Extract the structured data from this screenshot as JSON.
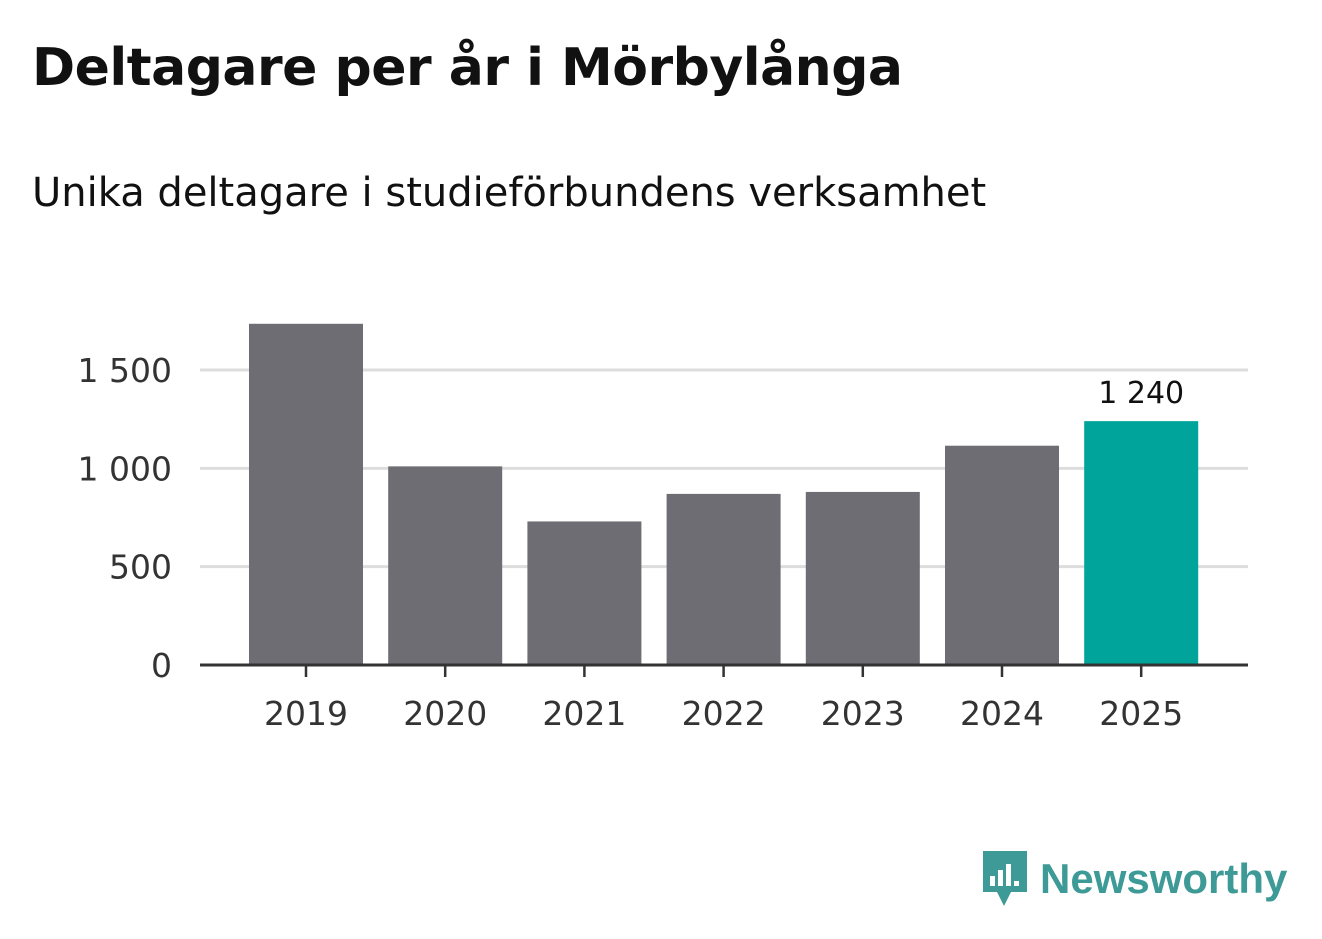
{
  "title": "Deltagare per år i Mörbylånga",
  "subtitle": "Unika deltagare i studieförbundens verksamhet",
  "brand": {
    "name": "Newsworthy",
    "icon": "newsworthy-logo-icon",
    "color": "#3d9a96"
  },
  "colors": {
    "bar": "#6e6d73",
    "highlight": "#00a49a",
    "grid": "#dddddd",
    "axis": "#333333"
  },
  "chart_data": {
    "type": "bar",
    "title": "Deltagare per år i Mörbylånga",
    "subtitle": "Unika deltagare i studieförbundens verksamhet",
    "xlabel": "",
    "ylabel": "",
    "categories": [
      "2019",
      "2020",
      "2021",
      "2022",
      "2023",
      "2024",
      "2025"
    ],
    "values": [
      1735,
      1010,
      730,
      870,
      880,
      1115,
      1240
    ],
    "highlight_index": 6,
    "ylim": [
      0,
      1750
    ],
    "yticks": [
      0,
      500,
      1000,
      1500
    ],
    "ytick_labels": [
      "0",
      "500",
      "1 000",
      "1 500"
    ],
    "grid": true,
    "annotations": [
      {
        "category": "2025",
        "text": "1 240"
      }
    ]
  }
}
